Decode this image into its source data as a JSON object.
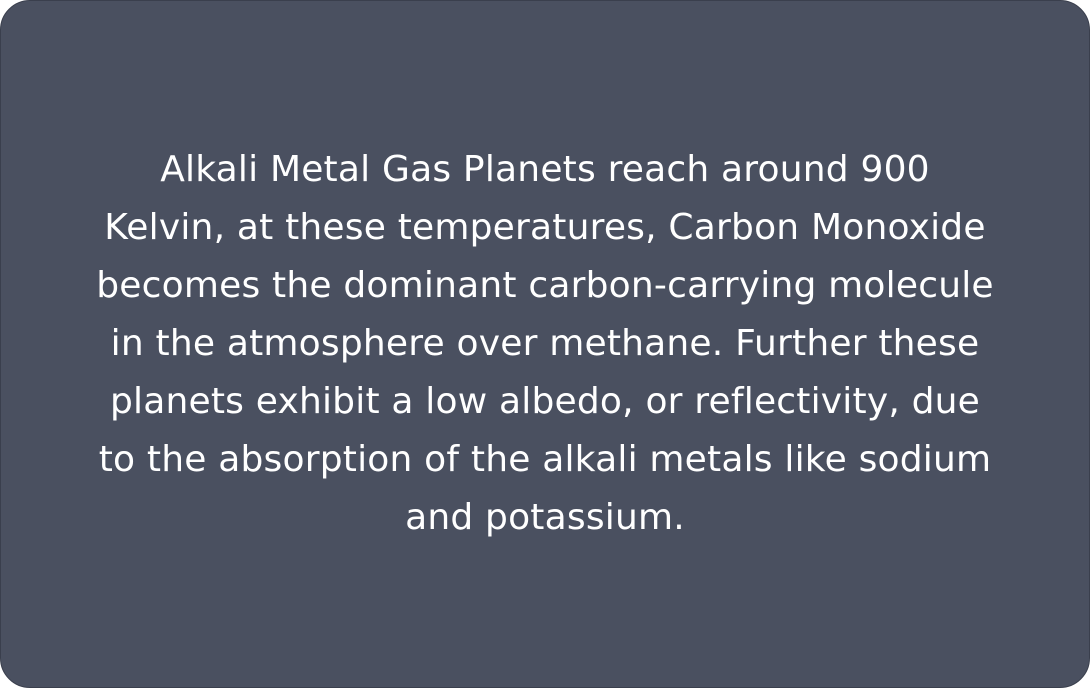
{
  "card": {
    "background": "#4a5060",
    "text_color": "#ffffff",
    "text": "Alkali Metal Gas Planets reach around 900 Kelvin, at these temperatures, Carbon Monoxide becomes the dominant carbon-carrying molecule in the atmosphere over methane. Further these planets exhibit a low albedo, or reflectivity, due to the absorption of the alkali metals like sodium and potassium."
  }
}
